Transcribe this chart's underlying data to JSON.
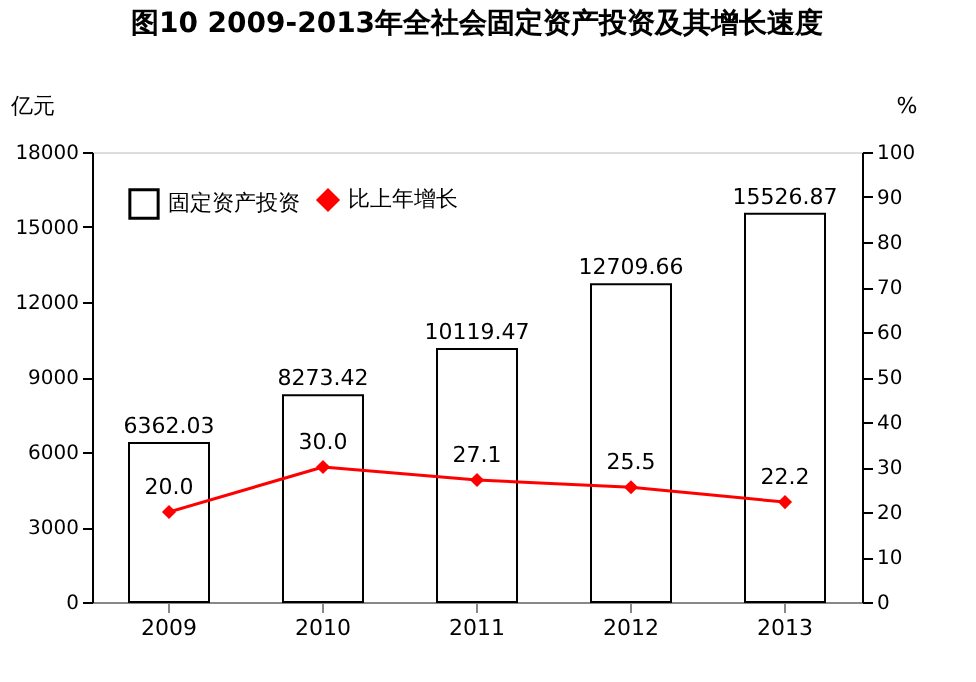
{
  "chart_data": {
    "type": "bar",
    "title": "图10   2009-2013年全社会固定资产投资及其增长速度",
    "categories": [
      "2009",
      "2010",
      "2011",
      "2012",
      "2013"
    ],
    "ylabel": "亿元",
    "y2label": "%",
    "ylim": [
      0,
      18000
    ],
    "yticks": [
      0,
      3000,
      6000,
      9000,
      12000,
      15000,
      18000
    ],
    "y2lim": [
      0,
      100
    ],
    "y2ticks": [
      0,
      10,
      20,
      30,
      40,
      50,
      60,
      70,
      80,
      90,
      100
    ],
    "grid": false,
    "legend": "top left",
    "marker": "diamond",
    "series": [
      {
        "name": "固定资产投资",
        "color": "#ffffff",
        "values": [
          6362.03,
          8273.42,
          10119.47,
          12709.66,
          15526.87
        ],
        "value_labels": [
          "6362.03",
          "8273.42",
          "10119.47",
          "12709.66",
          "15526.87"
        ]
      },
      {
        "name": "比上年增长",
        "type": "line",
        "axis": "y2",
        "color": "#ff0000",
        "values": [
          20.0,
          30.0,
          27.1,
          25.5,
          22.2
        ],
        "value_labels": [
          "20.0",
          "30.0",
          "27.1",
          "25.5",
          "22.2"
        ]
      }
    ]
  }
}
